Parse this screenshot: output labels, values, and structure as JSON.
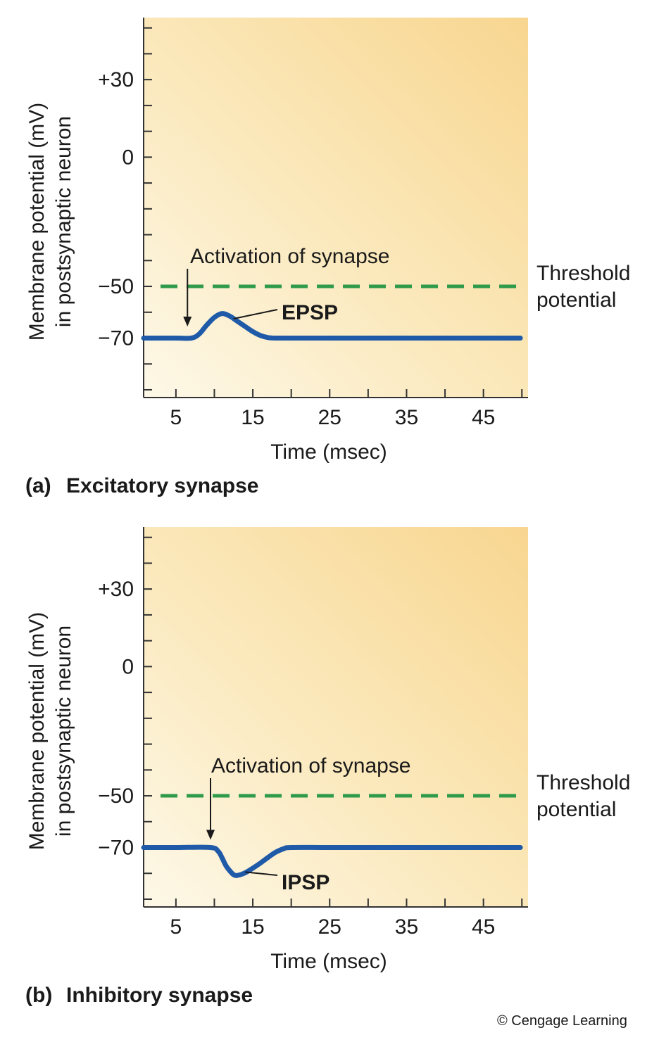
{
  "chart_data": [
    {
      "type": "line",
      "panel_label": "(a)",
      "title": "Excitatory synapse",
      "xlabel": "Time (msec)",
      "ylabel_lines": [
        "Membrane potential (mV)",
        "in postsynaptic neuron"
      ],
      "x_ticks": [
        5,
        15,
        25,
        35,
        45
      ],
      "x_tick_labels": [
        "5",
        "15",
        "25",
        "35",
        "45"
      ],
      "xlim": [
        0.8,
        50.8
      ],
      "y_tick_values": [
        30,
        0,
        -50,
        -70
      ],
      "y_tick_labels": [
        "+30",
        "0",
        "−50",
        "−70"
      ],
      "ylim": [
        -93,
        54
      ],
      "series": [
        {
          "name": "EPSP",
          "x": [
            0.8,
            5,
            7,
            8,
            9,
            10,
            11,
            12,
            13,
            14,
            15,
            16,
            17,
            18,
            20,
            25,
            35,
            49.8
          ],
          "y": [
            -70,
            -70,
            -70,
            -68.5,
            -65,
            -62,
            -60.5,
            -61.5,
            -63.5,
            -65.5,
            -67.5,
            -69,
            -69.8,
            -70,
            -70,
            -70,
            -70,
            -70
          ]
        }
      ],
      "threshold": {
        "value": -50,
        "x_range": [
          3,
          50
        ],
        "label_lines": [
          "Threshold",
          "potential"
        ]
      },
      "annotation": {
        "text": "Activation of synapse",
        "x": 6.5,
        "y": -65.5
      },
      "colors": {
        "curve": "#1f5aa8",
        "threshold": "#2e9a4a",
        "background": "#fbe7b4"
      }
    },
    {
      "type": "line",
      "panel_label": "(b)",
      "title": "Inhibitory synapse",
      "xlabel": "Time (msec)",
      "ylabel_lines": [
        "Membrane potential (mV)",
        "in postsynaptic neuron"
      ],
      "x_ticks": [
        5,
        15,
        25,
        35,
        45
      ],
      "x_tick_labels": [
        "5",
        "15",
        "25",
        "35",
        "45"
      ],
      "xlim": [
        0.8,
        50.8
      ],
      "y_tick_values": [
        30,
        0,
        -50,
        -70
      ],
      "y_tick_labels": [
        "+30",
        "0",
        "−50",
        "−70"
      ],
      "ylim": [
        -93,
        54
      ],
      "series": [
        {
          "name": "IPSP",
          "x": [
            0.8,
            5,
            9.5,
            10.5,
            11,
            11.5,
            12,
            12.5,
            13,
            14,
            15,
            16,
            17,
            18,
            19,
            20,
            25,
            35,
            49.8
          ],
          "y": [
            -70,
            -70,
            -70,
            -71.5,
            -74,
            -77,
            -79,
            -80.5,
            -80.8,
            -79.8,
            -78,
            -76,
            -73.8,
            -71.8,
            -70.5,
            -70,
            -70,
            -70,
            -70
          ]
        }
      ],
      "threshold": {
        "value": -50,
        "x_range": [
          3,
          50
        ],
        "label_lines": [
          "Threshold",
          "potential"
        ]
      },
      "annotation": {
        "text": "Activation of synapse",
        "x": 9.5,
        "y": -67
      },
      "colors": {
        "curve": "#1f5aa8",
        "threshold": "#2e9a4a",
        "background": "#fbe7b4"
      }
    }
  ],
  "credit": "© Cengage Learning"
}
